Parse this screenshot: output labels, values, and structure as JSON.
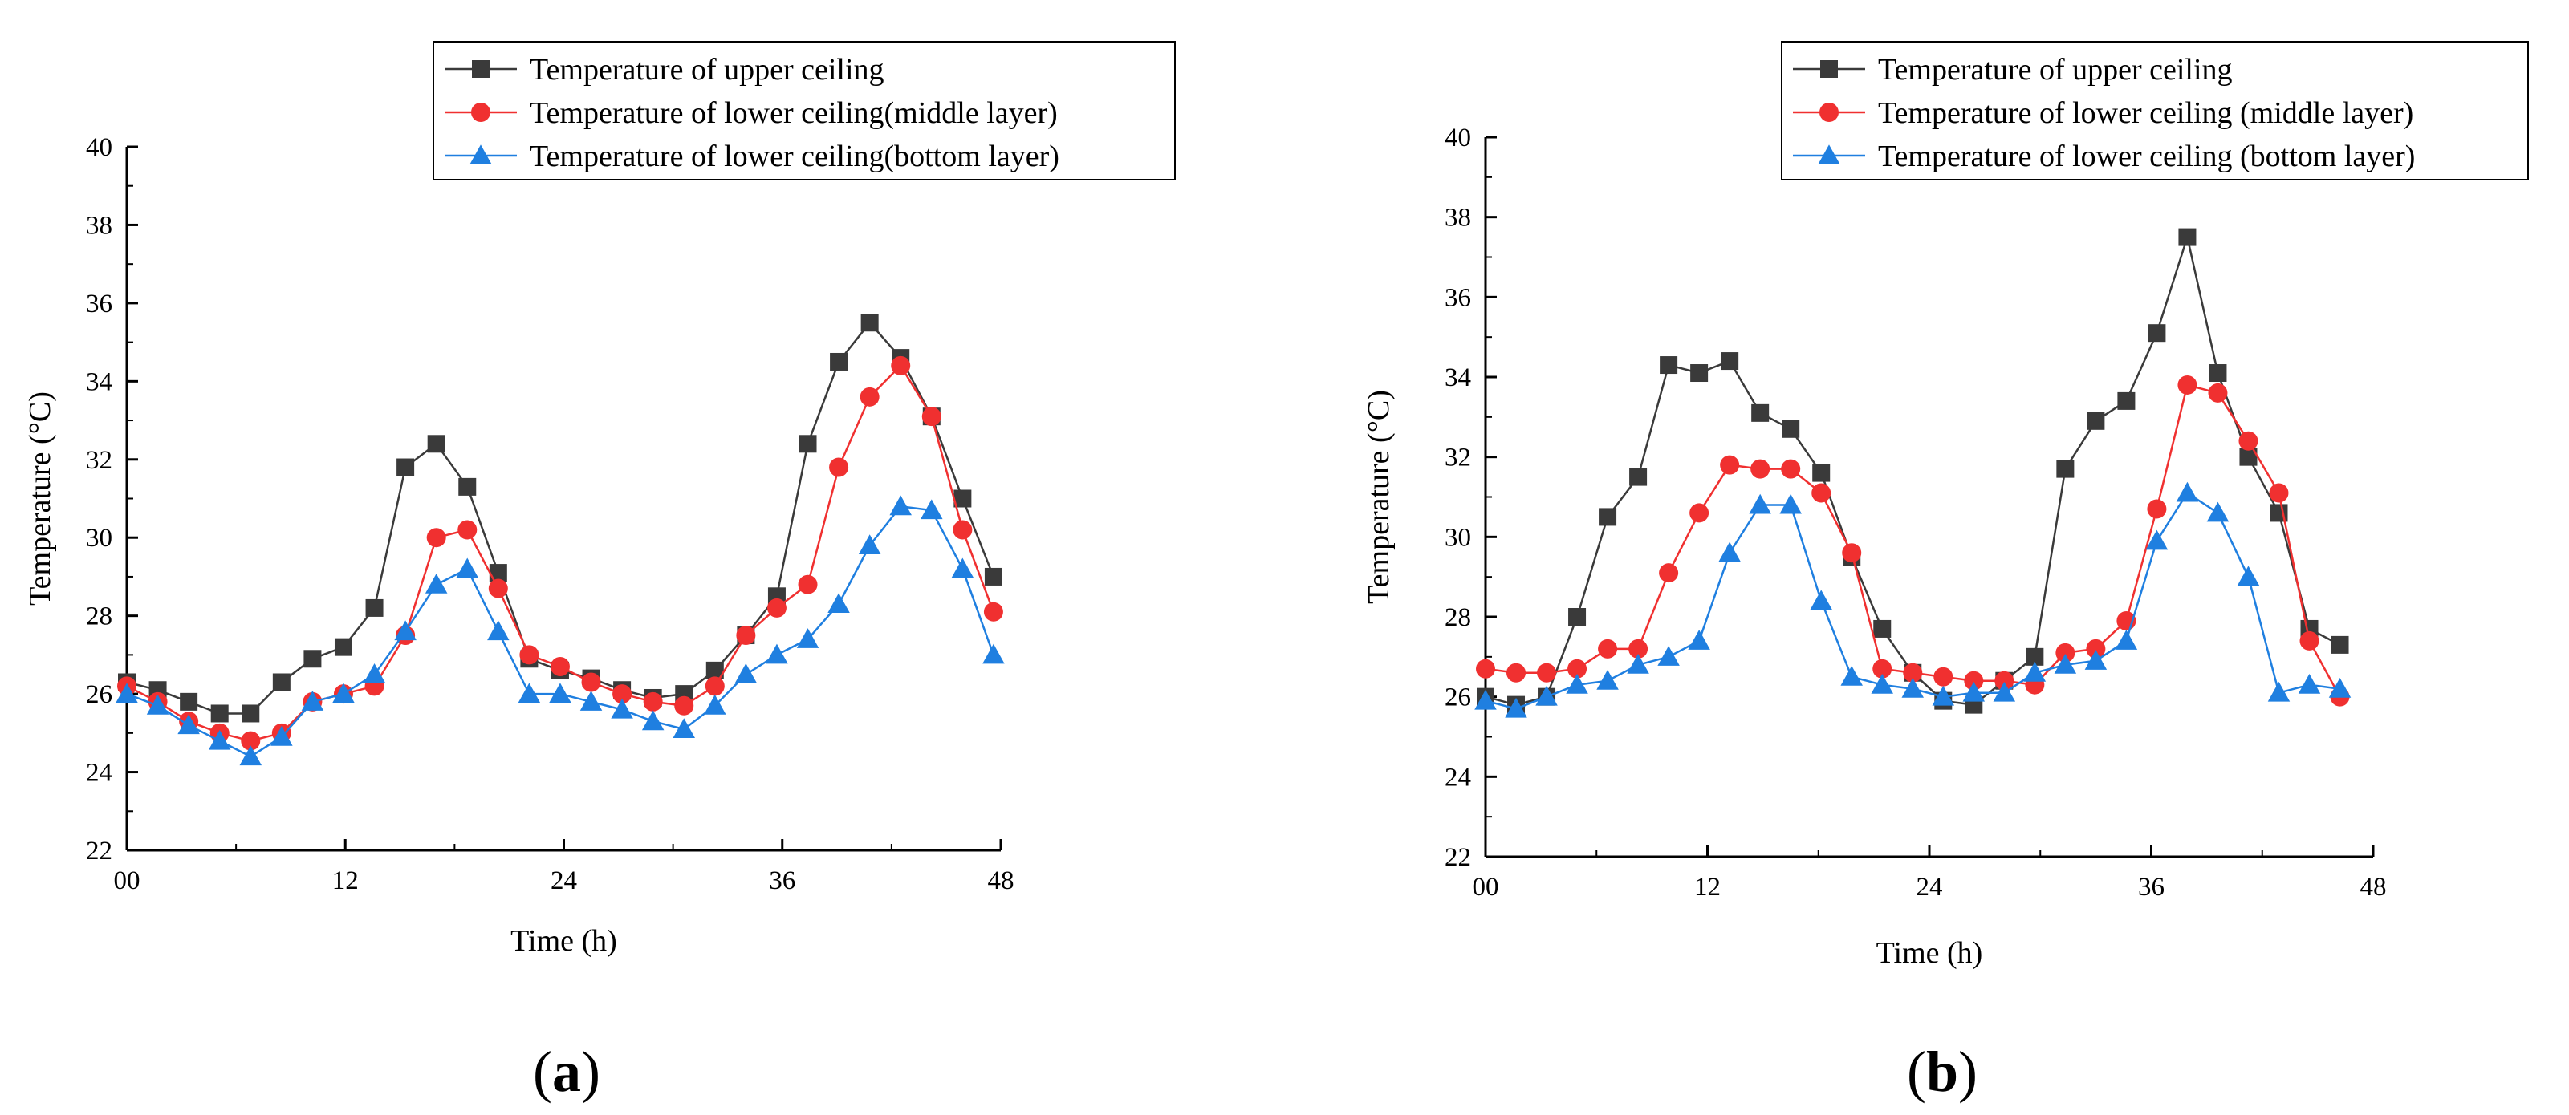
{
  "chart_data": [
    {
      "type": "line",
      "panel_label": "a",
      "title": "",
      "xlabel": "Time (h)",
      "ylabel": "Temperature (°C)",
      "xlim": [
        0,
        48
      ],
      "ylim": [
        22,
        40
      ],
      "xticks": [
        0,
        12,
        24,
        36,
        48
      ],
      "xtick_labels": [
        "00",
        "12",
        "24",
        "36",
        "48"
      ],
      "yticks": [
        22,
        24,
        26,
        28,
        30,
        32,
        34,
        36,
        38,
        40
      ],
      "ytick_labels": [
        "22",
        "24",
        "26",
        "28",
        "30",
        "32",
        "34",
        "36",
        "38",
        "40"
      ],
      "grid": false,
      "legend_position": "top-right",
      "series": [
        {
          "name": "Temperature of upper ceiling",
          "color": "#3a3a3a",
          "marker": "square",
          "x": [
            0,
            1.7,
            3.4,
            5.1,
            6.8,
            8.5,
            10.2,
            11.9,
            13.6,
            15.3,
            17.0,
            18.7,
            20.4,
            22.1,
            23.8,
            25.5,
            27.2,
            28.9,
            30.6,
            32.3,
            34.0,
            35.7,
            37.4,
            39.1,
            40.8,
            42.5,
            44.2,
            45.9,
            47.6
          ],
          "y": [
            26.3,
            26.1,
            25.8,
            25.5,
            25.5,
            26.3,
            26.9,
            27.2,
            28.2,
            31.8,
            32.4,
            31.3,
            29.1,
            26.9,
            26.6,
            26.4,
            26.1,
            25.9,
            26.0,
            26.6,
            27.5,
            28.5,
            32.4,
            34.5,
            35.5,
            34.6,
            33.1,
            31.0,
            29.0
          ]
        },
        {
          "name": "Temperature of lower ceiling(middle layer)",
          "color": "#f03030",
          "marker": "circle",
          "x": [
            0,
            1.7,
            3.4,
            5.1,
            6.8,
            8.5,
            10.2,
            11.9,
            13.6,
            15.3,
            17.0,
            18.7,
            20.4,
            22.1,
            23.8,
            25.5,
            27.2,
            28.9,
            30.6,
            32.3,
            34.0,
            35.7,
            37.4,
            39.1,
            40.8,
            42.5,
            44.2,
            45.9,
            47.6
          ],
          "y": [
            26.2,
            25.8,
            25.3,
            25.0,
            24.8,
            25.0,
            25.8,
            26.0,
            26.2,
            27.5,
            30.0,
            30.2,
            28.7,
            27.0,
            26.7,
            26.3,
            26.0,
            25.8,
            25.7,
            26.2,
            27.5,
            28.2,
            28.8,
            31.8,
            33.6,
            34.4,
            33.1,
            30.2,
            28.1
          ]
        },
        {
          "name": "Temperature of lower ceiling(bottom layer)",
          "color": "#1f7fe0",
          "marker": "triangle",
          "x": [
            0,
            1.7,
            3.4,
            5.1,
            6.8,
            8.5,
            10.2,
            11.9,
            13.6,
            15.3,
            17.0,
            18.7,
            20.4,
            22.1,
            23.8,
            25.5,
            27.2,
            28.9,
            30.6,
            32.3,
            34.0,
            35.7,
            37.4,
            39.1,
            40.8,
            42.5,
            44.2,
            45.9,
            47.6
          ],
          "y": [
            26.0,
            25.7,
            25.2,
            24.8,
            24.4,
            24.9,
            25.8,
            26.0,
            26.5,
            27.6,
            28.8,
            29.2,
            27.6,
            26.0,
            26.0,
            25.8,
            25.6,
            25.3,
            25.1,
            25.7,
            26.5,
            27.0,
            27.4,
            28.3,
            29.8,
            30.8,
            30.7,
            29.2,
            27.0
          ]
        }
      ]
    },
    {
      "type": "line",
      "panel_label": "b",
      "title": "",
      "xlabel": "Time (h)",
      "ylabel": "Temperature (°C)",
      "xlim": [
        0,
        48
      ],
      "ylim": [
        22,
        40
      ],
      "xticks": [
        0,
        12,
        24,
        36,
        48
      ],
      "xtick_labels": [
        "00",
        "12",
        "24",
        "36",
        "48"
      ],
      "yticks": [
        22,
        24,
        26,
        28,
        30,
        32,
        34,
        36,
        38,
        40
      ],
      "ytick_labels": [
        "22",
        "24",
        "26",
        "28",
        "30",
        "32",
        "34",
        "36",
        "38",
        "40"
      ],
      "grid": false,
      "legend_position": "top-right",
      "series": [
        {
          "name": "Temperature of upper ceiling",
          "color": "#3a3a3a",
          "marker": "square",
          "x": [
            0,
            1.65,
            3.3,
            4.95,
            6.6,
            8.25,
            9.9,
            11.55,
            13.2,
            14.85,
            16.5,
            18.15,
            19.8,
            21.45,
            23.1,
            24.75,
            26.4,
            28.05,
            29.7,
            31.35,
            33.0,
            34.65,
            36.3,
            37.95,
            39.6,
            41.25,
            42.9,
            44.55,
            46.2
          ],
          "y": [
            26.0,
            25.8,
            26.0,
            28.0,
            30.5,
            31.5,
            34.3,
            34.1,
            34.4,
            33.1,
            32.7,
            31.6,
            29.5,
            27.7,
            26.6,
            25.9,
            25.8,
            26.4,
            27.0,
            31.7,
            32.9,
            33.4,
            35.1,
            37.5,
            34.1,
            32.0,
            30.6,
            27.7,
            27.3
          ]
        },
        {
          "name": "Temperature of lower ceiling (middle layer)",
          "color": "#f03030",
          "marker": "circle",
          "x": [
            0,
            1.65,
            3.3,
            4.95,
            6.6,
            8.25,
            9.9,
            11.55,
            13.2,
            14.85,
            16.5,
            18.15,
            19.8,
            21.45,
            23.1,
            24.75,
            26.4,
            28.05,
            29.7,
            31.35,
            33.0,
            34.65,
            36.3,
            37.95,
            39.6,
            41.25,
            42.9,
            44.55,
            46.2
          ],
          "y": [
            26.7,
            26.6,
            26.6,
            26.7,
            27.2,
            27.2,
            29.1,
            30.6,
            31.8,
            31.7,
            31.7,
            31.1,
            29.6,
            26.7,
            26.6,
            26.5,
            26.4,
            26.4,
            26.3,
            27.1,
            27.2,
            27.9,
            30.7,
            33.8,
            33.6,
            32.4,
            31.1,
            27.4,
            26.0
          ]
        },
        {
          "name": "Temperature of lower ceiling (bottom layer)",
          "color": "#1f7fe0",
          "marker": "triangle",
          "x": [
            0,
            1.65,
            3.3,
            4.95,
            6.6,
            8.25,
            9.9,
            11.55,
            13.2,
            14.85,
            16.5,
            18.15,
            19.8,
            21.45,
            23.1,
            24.75,
            26.4,
            28.05,
            29.7,
            31.35,
            33.0,
            34.65,
            36.3,
            37.95,
            39.6,
            41.25,
            42.9,
            44.55,
            46.2
          ],
          "y": [
            25.9,
            25.7,
            26.0,
            26.3,
            26.4,
            26.8,
            27.0,
            27.4,
            29.6,
            30.8,
            30.8,
            28.4,
            26.5,
            26.3,
            26.2,
            26.0,
            26.1,
            26.1,
            26.6,
            26.8,
            26.9,
            27.4,
            29.9,
            31.1,
            30.6,
            29.0,
            26.1,
            26.3,
            26.2
          ]
        }
      ]
    }
  ]
}
